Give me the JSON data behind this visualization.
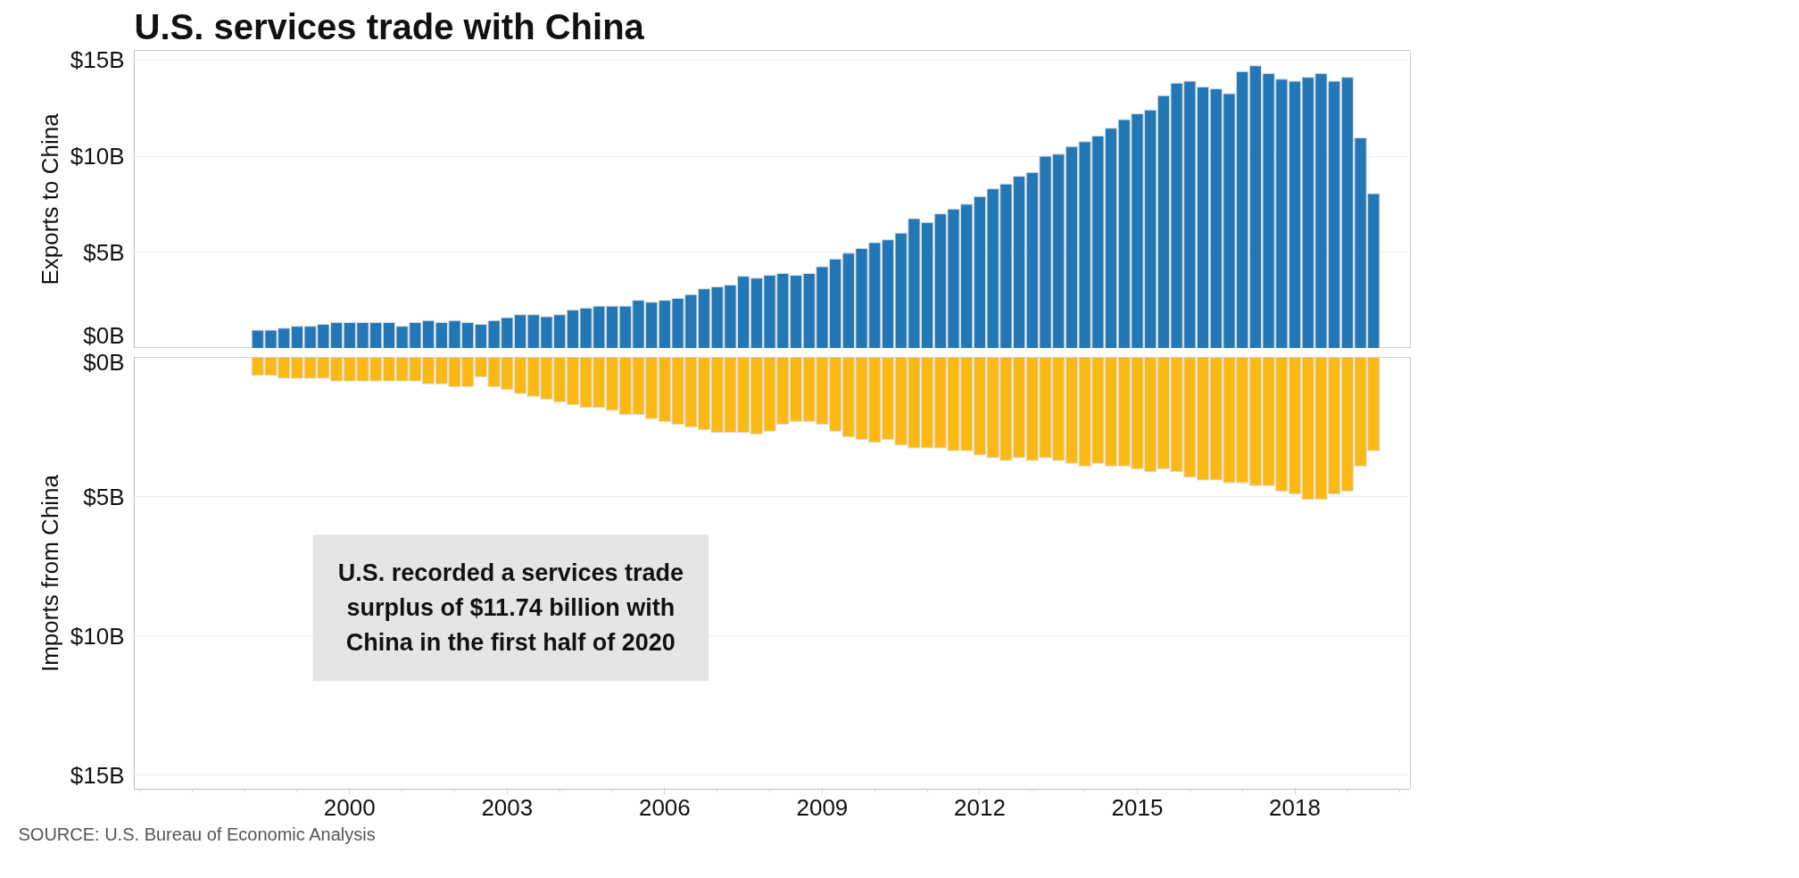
{
  "chart_data": [
    {
      "type": "bar",
      "title": "U.S. services trade with China",
      "ylabel": "Exports to China",
      "tick_labels": "y",
      "grid": "y",
      "xlim": [
        1995.9,
        2020.2
      ],
      "ylim": [
        0,
        15.5
      ],
      "yticks": [
        {
          "value": 0,
          "label": "$0B"
        },
        {
          "value": 5,
          "label": "$5B"
        },
        {
          "value": 10,
          "label": "$10B"
        },
        {
          "value": 15,
          "label": "$15B"
        }
      ],
      "x": [
        1998.25,
        1998.5,
        1998.75,
        1999.0,
        1999.25,
        1999.5,
        1999.75,
        2000.0,
        2000.25,
        2000.5,
        2000.75,
        2001.0,
        2001.25,
        2001.5,
        2001.75,
        2002.0,
        2002.25,
        2002.5,
        2002.75,
        2003.0,
        2003.25,
        2003.5,
        2003.75,
        2004.0,
        2004.25,
        2004.5,
        2004.75,
        2005.0,
        2005.25,
        2005.5,
        2005.75,
        2006.0,
        2006.25,
        2006.5,
        2006.75,
        2007.0,
        2007.25,
        2007.5,
        2007.75,
        2008.0,
        2008.25,
        2008.5,
        2008.75,
        2009.0,
        2009.25,
        2009.5,
        2009.75,
        2010.0,
        2010.25,
        2010.5,
        2010.75,
        2011.0,
        2011.25,
        2011.5,
        2011.75,
        2012.0,
        2012.25,
        2012.5,
        2012.75,
        2013.0,
        2013.25,
        2013.5,
        2013.75,
        2014.0,
        2014.25,
        2014.5,
        2014.75,
        2015.0,
        2015.25,
        2015.5,
        2015.75,
        2016.0,
        2016.25,
        2016.5,
        2016.75,
        2017.0,
        2017.25,
        2017.5,
        2017.75,
        2018.0,
        2018.25,
        2018.5,
        2018.75,
        2019.0,
        2019.25,
        2019.5
      ],
      "series": [
        {
          "color": "#2277b6",
          "values": [
            0.95,
            0.95,
            1.05,
            1.15,
            1.15,
            1.25,
            1.35,
            1.35,
            1.35,
            1.35,
            1.35,
            1.15,
            1.35,
            1.45,
            1.35,
            1.45,
            1.35,
            1.25,
            1.45,
            1.6,
            1.75,
            1.75,
            1.65,
            1.75,
            2.0,
            2.1,
            2.2,
            2.2,
            2.2,
            2.5,
            2.4,
            2.5,
            2.6,
            2.8,
            3.1,
            3.2,
            3.3,
            3.75,
            3.65,
            3.8,
            3.9,
            3.8,
            3.9,
            4.25,
            4.65,
            4.95,
            5.2,
            5.5,
            5.65,
            6.0,
            6.75,
            6.55,
            7.0,
            7.25,
            7.5,
            7.9,
            8.3,
            8.55,
            8.95,
            9.15,
            10.0,
            10.1,
            10.5,
            10.75,
            11.05,
            11.45,
            11.9,
            12.2,
            12.4,
            13.15,
            13.8,
            13.9,
            13.6,
            13.5,
            13.25,
            14.4,
            14.7,
            14.3,
            14.0,
            13.9,
            14.1,
            14.3,
            13.9,
            14.1,
            10.95,
            8.05
          ]
        }
      ]
    },
    {
      "type": "bar",
      "ylabel": "Imports from China",
      "grid": "y",
      "xlim": [
        1995.9,
        2020.2
      ],
      "ylim": [
        15.5,
        0
      ],
      "yticks": [
        {
          "value": 0,
          "label": "$0B"
        },
        {
          "value": 5,
          "label": "$5B"
        },
        {
          "value": 10,
          "label": "$10B"
        },
        {
          "value": 15,
          "label": "$15B"
        }
      ],
      "xticks": [
        2000,
        2003,
        2006,
        2009,
        2012,
        2015,
        2018
      ],
      "x": [
        1998.25,
        1998.5,
        1998.75,
        1999.0,
        1999.25,
        1999.5,
        1999.75,
        2000.0,
        2000.25,
        2000.5,
        2000.75,
        2001.0,
        2001.25,
        2001.5,
        2001.75,
        2002.0,
        2002.25,
        2002.5,
        2002.75,
        2003.0,
        2003.25,
        2003.5,
        2003.75,
        2004.0,
        2004.25,
        2004.5,
        2004.75,
        2005.0,
        2005.25,
        2005.5,
        2005.75,
        2006.0,
        2006.25,
        2006.5,
        2006.75,
        2007.0,
        2007.25,
        2007.5,
        2007.75,
        2008.0,
        2008.25,
        2008.5,
        2008.75,
        2009.0,
        2009.25,
        2009.5,
        2009.75,
        2010.0,
        2010.25,
        2010.5,
        2010.75,
        2011.0,
        2011.25,
        2011.5,
        2011.75,
        2012.0,
        2012.25,
        2012.5,
        2012.75,
        2013.0,
        2013.25,
        2013.5,
        2013.75,
        2014.0,
        2014.25,
        2014.5,
        2014.75,
        2015.0,
        2015.25,
        2015.5,
        2015.75,
        2016.0,
        2016.25,
        2016.5,
        2016.75,
        2017.0,
        2017.25,
        2017.5,
        2017.75,
        2018.0,
        2018.25,
        2018.5,
        2018.75,
        2019.0,
        2019.25,
        2019.5
      ],
      "series": [
        {
          "color": "#fdb913",
          "values": [
            0.65,
            0.65,
            0.75,
            0.75,
            0.75,
            0.75,
            0.85,
            0.85,
            0.85,
            0.85,
            0.85,
            0.85,
            0.85,
            0.95,
            0.95,
            1.05,
            1.05,
            0.7,
            1.05,
            1.15,
            1.3,
            1.4,
            1.5,
            1.6,
            1.7,
            1.8,
            1.8,
            1.9,
            2.05,
            2.05,
            2.2,
            2.3,
            2.4,
            2.5,
            2.6,
            2.7,
            2.7,
            2.7,
            2.75,
            2.65,
            2.4,
            2.3,
            2.3,
            2.4,
            2.65,
            2.85,
            2.95,
            3.05,
            2.95,
            3.15,
            3.25,
            3.25,
            3.25,
            3.35,
            3.35,
            3.5,
            3.6,
            3.7,
            3.6,
            3.7,
            3.6,
            3.7,
            3.8,
            3.9,
            3.8,
            3.9,
            3.9,
            4.0,
            4.1,
            4.0,
            4.1,
            4.3,
            4.4,
            4.4,
            4.5,
            4.5,
            4.6,
            4.6,
            4.8,
            4.9,
            5.1,
            5.1,
            4.9,
            4.8,
            3.9,
            3.35
          ]
        }
      ],
      "annotations": [
        "U.S. recorded a services trade surplus of $11.74 billion with China in the first half of 2020",
        "SOURCE: U.S. Bureau of Economic Analysis"
      ]
    }
  ]
}
